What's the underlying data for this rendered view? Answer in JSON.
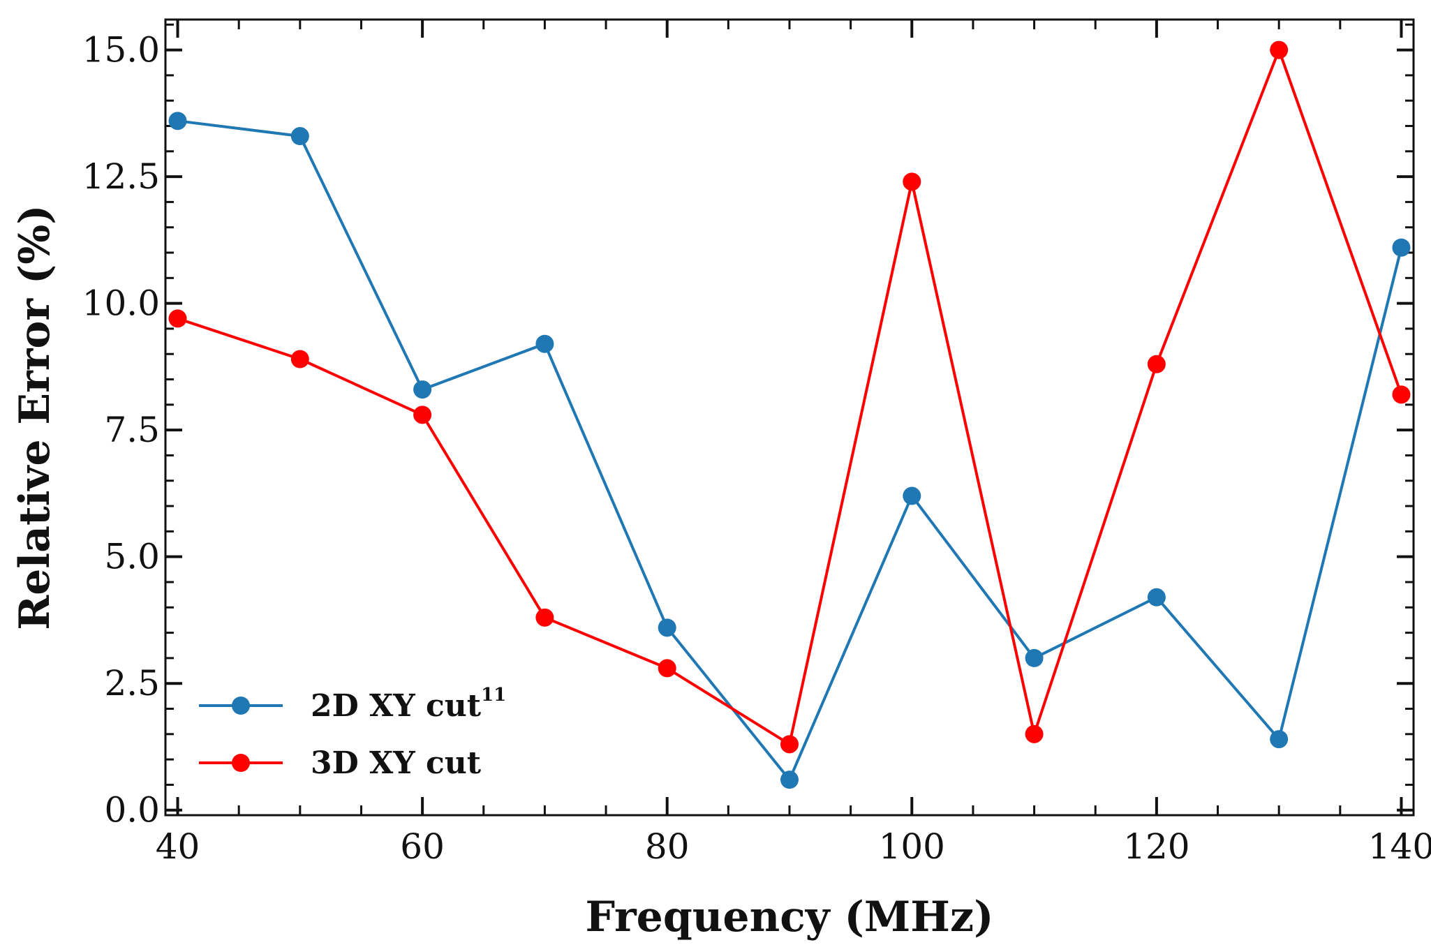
{
  "chart_data": {
    "type": "line",
    "title": "",
    "xlabel": "Frequency (MHz)",
    "ylabel": "Relative Error (%)",
    "xlim": [
      39,
      141
    ],
    "ylim": [
      -0.1,
      15.6
    ],
    "grid": false,
    "legend_position": "bottom-left",
    "x_ticks": [
      40,
      60,
      80,
      100,
      120,
      140
    ],
    "x_tick_labels": [
      "40",
      "60",
      "80",
      "100",
      "120",
      "140"
    ],
    "y_ticks": [
      0.0,
      2.5,
      5.0,
      7.5,
      10.0,
      12.5,
      15.0
    ],
    "y_tick_labels": [
      "0.0",
      "2.5",
      "5.0",
      "7.5",
      "10.0",
      "12.5",
      "15.0"
    ],
    "x_minor_step": 5,
    "y_minor_step": 0.5,
    "series": [
      {
        "name": "2D XY cut",
        "name_superscript": "11",
        "color": "#1f77b4",
        "x": [
          40,
          50,
          60,
          70,
          80,
          90,
          100,
          110,
          120,
          130,
          140
        ],
        "values": [
          13.6,
          13.3,
          8.3,
          9.2,
          3.6,
          0.6,
          6.2,
          3.0,
          4.2,
          1.4,
          11.1
        ]
      },
      {
        "name": "3D XY cut",
        "name_superscript": "",
        "color": "#ff0000",
        "x": [
          40,
          50,
          60,
          70,
          80,
          90,
          100,
          110,
          120,
          130,
          140
        ],
        "values": [
          9.7,
          8.9,
          7.8,
          3.8,
          2.8,
          1.3,
          12.4,
          1.5,
          8.8,
          15.0,
          8.2
        ]
      }
    ]
  }
}
